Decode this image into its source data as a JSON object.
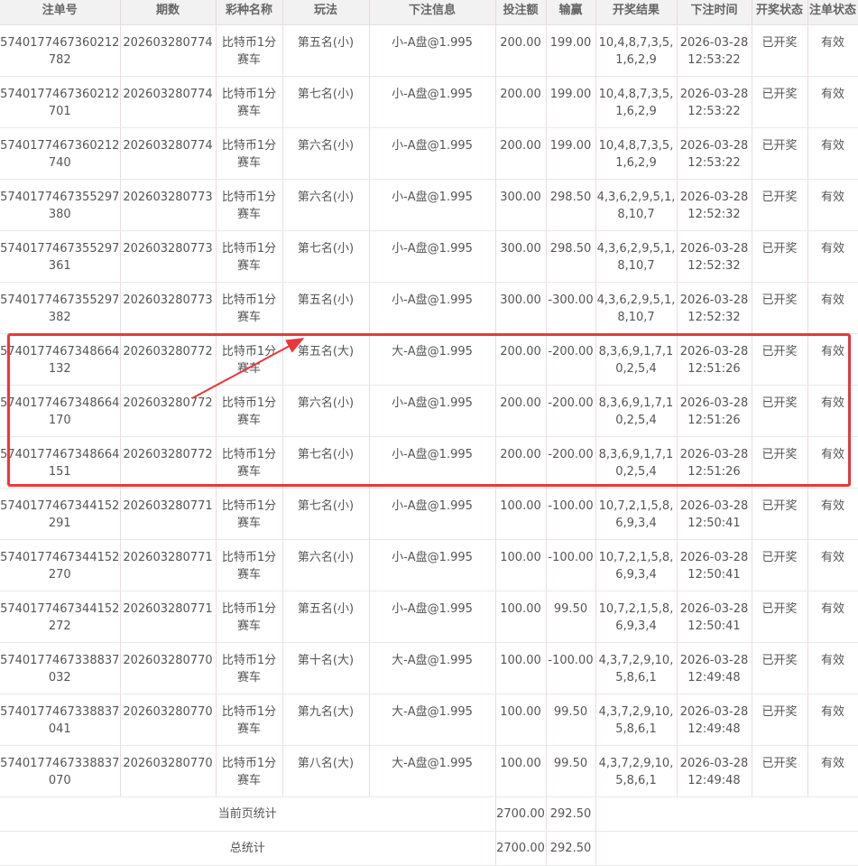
{
  "headers": [
    "注单号",
    "期数",
    "彩种名称",
    "玩法",
    "下注信息",
    "投注额",
    "输赢",
    "开奖结果",
    "下注时间",
    "开奖状态",
    "注单状态"
  ],
  "rows": [
    [
      "5740177467360212782",
      "202603280774",
      "比特币1分赛车",
      "第五名(小)",
      "小-A盘@1.995",
      "200.00",
      "199.00",
      "10,4,8,7,3,5,1,6,2,9",
      "2026-03-28 12:53:22",
      "已开奖",
      "有效"
    ],
    [
      "5740177467360212701",
      "202603280774",
      "比特币1分赛车",
      "第七名(小)",
      "小-A盘@1.995",
      "200.00",
      "199.00",
      "10,4,8,7,3,5,1,6,2,9",
      "2026-03-28 12:53:22",
      "已开奖",
      "有效"
    ],
    [
      "5740177467360212740",
      "202603280774",
      "比特币1分赛车",
      "第六名(小)",
      "小-A盘@1.995",
      "200.00",
      "199.00",
      "10,4,8,7,3,5,1,6,2,9",
      "2026-03-28 12:53:22",
      "已开奖",
      "有效"
    ],
    [
      "5740177467355297380",
      "202603280773",
      "比特币1分赛车",
      "第六名(小)",
      "小-A盘@1.995",
      "300.00",
      "298.50",
      "4,3,6,2,9,5,1,8,10,7",
      "2026-03-28 12:52:32",
      "已开奖",
      "有效"
    ],
    [
      "5740177467355297361",
      "202603280773",
      "比特币1分赛车",
      "第七名(小)",
      "小-A盘@1.995",
      "300.00",
      "298.50",
      "4,3,6,2,9,5,1,8,10,7",
      "2026-03-28 12:52:32",
      "已开奖",
      "有效"
    ],
    [
      "5740177467355297382",
      "202603280773",
      "比特币1分赛车",
      "第五名(小)",
      "小-A盘@1.995",
      "300.00",
      "-300.00",
      "4,3,6,2,9,5,1,8,10,7",
      "2026-03-28 12:52:32",
      "已开奖",
      "有效"
    ],
    [
      "5740177467348664132",
      "202603280772",
      "比特币1分赛车",
      "第五名(大)",
      "大-A盘@1.995",
      "200.00",
      "-200.00",
      "8,3,6,9,1,7,10,2,5,4",
      "2026-03-28 12:51:26",
      "已开奖",
      "有效"
    ],
    [
      "5740177467348664170",
      "202603280772",
      "比特币1分赛车",
      "第六名(小)",
      "小-A盘@1.995",
      "200.00",
      "-200.00",
      "8,3,6,9,1,7,10,2,5,4",
      "2026-03-28 12:51:26",
      "已开奖",
      "有效"
    ],
    [
      "5740177467348664151",
      "202603280772",
      "比特币1分赛车",
      "第七名(小)",
      "小-A盘@1.995",
      "200.00",
      "-200.00",
      "8,3,6,9,1,7,10,2,5,4",
      "2026-03-28 12:51:26",
      "已开奖",
      "有效"
    ],
    [
      "5740177467344152291",
      "202603280771",
      "比特币1分赛车",
      "第七名(小)",
      "小-A盘@1.995",
      "100.00",
      "-100.00",
      "10,7,2,1,5,8,6,9,3,4",
      "2026-03-28 12:50:41",
      "已开奖",
      "有效"
    ],
    [
      "5740177467344152270",
      "202603280771",
      "比特币1分赛车",
      "第六名(小)",
      "小-A盘@1.995",
      "100.00",
      "-100.00",
      "10,7,2,1,5,8,6,9,3,4",
      "2026-03-28 12:50:41",
      "已开奖",
      "有效"
    ],
    [
      "5740177467344152272",
      "202603280771",
      "比特币1分赛车",
      "第五名(小)",
      "小-A盘@1.995",
      "100.00",
      "99.50",
      "10,7,2,1,5,8,6,9,3,4",
      "2026-03-28 12:50:41",
      "已开奖",
      "有效"
    ],
    [
      "5740177467338837032",
      "202603280770",
      "比特币1分赛车",
      "第十名(大)",
      "大-A盘@1.995",
      "100.00",
      "-100.00",
      "4,3,7,2,9,10,5,8,6,1",
      "2026-03-28 12:49:48",
      "已开奖",
      "有效"
    ],
    [
      "5740177467338837041",
      "202603280770",
      "比特币1分赛车",
      "第九名(大)",
      "大-A盘@1.995",
      "100.00",
      "99.50",
      "4,3,7,2,9,10,5,8,6,1",
      "2026-03-28 12:49:48",
      "已开奖",
      "有效"
    ],
    [
      "5740177467338837070",
      "202603280770",
      "比特币1分赛车",
      "第八名(大)",
      "大-A盘@1.995",
      "100.00",
      "99.50",
      "4,3,7,2,9,10,5,8,6,1",
      "2026-03-28 12:49:48",
      "已开奖",
      "有效"
    ]
  ],
  "summary": [
    {
      "label": "当前页统计",
      "amount": "2700.00",
      "profit": "292.50"
    },
    {
      "label": "总统计",
      "amount": "2700.00",
      "profit": "292.50"
    }
  ],
  "annotation_color": "#e8383d"
}
